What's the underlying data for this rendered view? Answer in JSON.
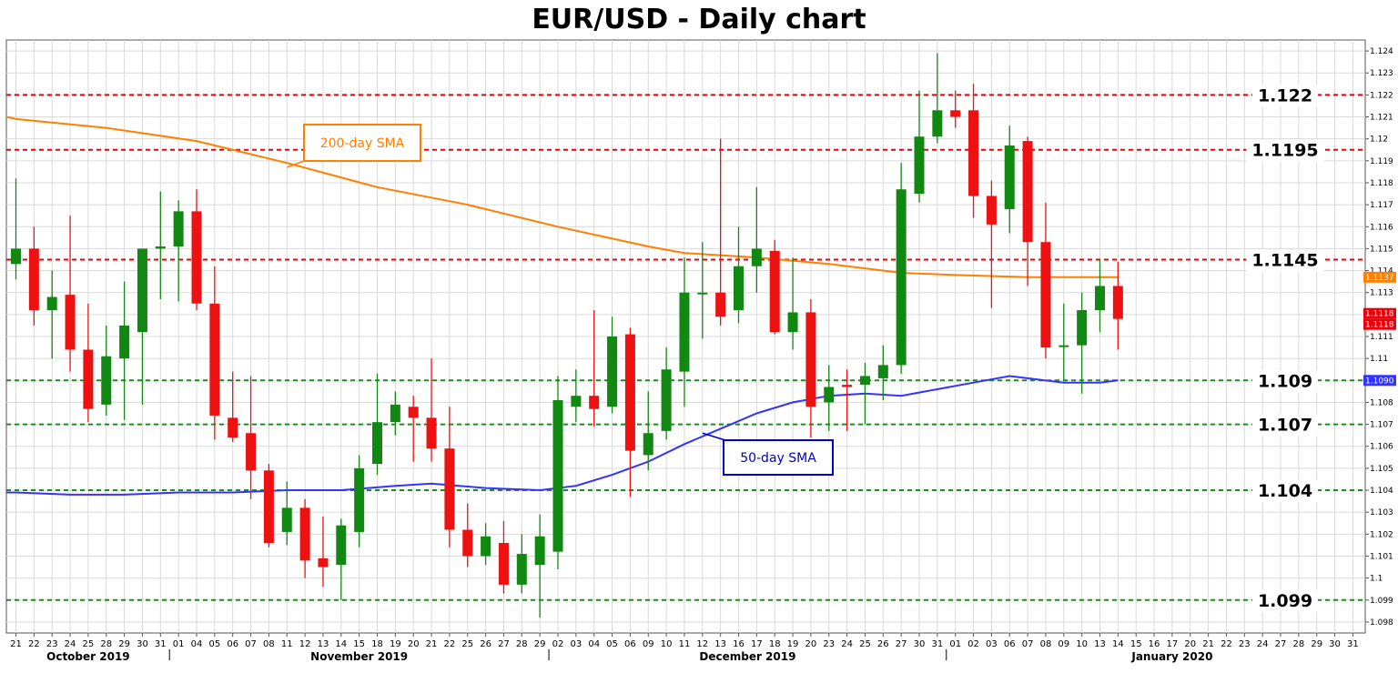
{
  "chart_data": {
    "type": "candlestick",
    "title": "EUR/USD - Daily chart",
    "ylim": [
      1.0975,
      1.1245
    ],
    "y_ticks": [
      "1.098",
      "1.099",
      "1.1",
      "1.101",
      "1.102",
      "1.103",
      "1.104",
      "1.105",
      "1.106",
      "1.107",
      "1.108",
      "1.109",
      "1.11",
      "1.111",
      "1.112",
      "1.113",
      "1.114",
      "1.115",
      "1.116",
      "1.117",
      "1.118",
      "1.119",
      "1.12",
      "1.121",
      "1.122",
      "1.123",
      "1.124"
    ],
    "x_tick_labels": [
      "21",
      "22",
      "23",
      "24",
      "25",
      "28",
      "29",
      "30",
      "31",
      "01",
      "04",
      "05",
      "06",
      "07",
      "08",
      "11",
      "12",
      "13",
      "14",
      "15",
      "18",
      "19",
      "20",
      "21",
      "22",
      "25",
      "26",
      "27",
      "28",
      "29",
      "02",
      "03",
      "04",
      "05",
      "06",
      "09",
      "10",
      "11",
      "12",
      "13",
      "16",
      "17",
      "18",
      "19",
      "20",
      "23",
      "24",
      "25",
      "26",
      "27",
      "30",
      "31",
      "01",
      "02",
      "03",
      "06",
      "07",
      "08",
      "09",
      "10",
      "13",
      "14",
      "15",
      "16",
      "17",
      "20",
      "21",
      "22",
      "23",
      "24",
      "27",
      "28",
      "29",
      "30",
      "31"
    ],
    "months": [
      {
        "label": "October 2019",
        "at": 0
      },
      {
        "label": "November 2019",
        "at": 9
      },
      {
        "label": "December 2019",
        "at": 30
      },
      {
        "label": "January 2020",
        "at": 52
      }
    ],
    "candles": [
      {
        "o": 1.1143,
        "h": 1.1182,
        "l": 1.1136,
        "c": 1.115
      },
      {
        "o": 1.115,
        "h": 1.116,
        "l": 1.1115,
        "c": 1.1122
      },
      {
        "o": 1.1122,
        "h": 1.114,
        "l": 1.11,
        "c": 1.1128
      },
      {
        "o": 1.1129,
        "h": 1.1165,
        "l": 1.1094,
        "c": 1.1104
      },
      {
        "o": 1.1104,
        "h": 1.1125,
        "l": 1.1071,
        "c": 1.1077
      },
      {
        "o": 1.1079,
        "h": 1.1115,
        "l": 1.1074,
        "c": 1.1101
      },
      {
        "o": 1.11,
        "h": 1.1135,
        "l": 1.1072,
        "c": 1.1115
      },
      {
        "o": 1.1112,
        "h": 1.115,
        "l": 1.1079,
        "c": 1.115
      },
      {
        "o": 1.115,
        "h": 1.1176,
        "l": 1.1127,
        "c": 1.1151
      },
      {
        "o": 1.1151,
        "h": 1.1172,
        "l": 1.1126,
        "c": 1.1167
      },
      {
        "o": 1.1167,
        "h": 1.1177,
        "l": 1.1122,
        "c": 1.1125
      },
      {
        "o": 1.1125,
        "h": 1.1142,
        "l": 1.1063,
        "c": 1.1074
      },
      {
        "o": 1.1073,
        "h": 1.1094,
        "l": 1.1062,
        "c": 1.1064
      },
      {
        "o": 1.1066,
        "h": 1.1092,
        "l": 1.1036,
        "c": 1.1049
      },
      {
        "o": 1.1049,
        "h": 1.1052,
        "l": 1.1014,
        "c": 1.1016
      },
      {
        "o": 1.1021,
        "h": 1.1044,
        "l": 1.1015,
        "c": 1.1032
      },
      {
        "o": 1.1032,
        "h": 1.1036,
        "l": 1.1,
        "c": 1.1008
      },
      {
        "o": 1.1009,
        "h": 1.1028,
        "l": 1.0996,
        "c": 1.1005
      },
      {
        "o": 1.1006,
        "h": 1.1027,
        "l": 1.099,
        "c": 1.1024
      },
      {
        "o": 1.1021,
        "h": 1.1056,
        "l": 1.1014,
        "c": 1.105
      },
      {
        "o": 1.1052,
        "h": 1.1093,
        "l": 1.1047,
        "c": 1.1071
      },
      {
        "o": 1.1071,
        "h": 1.1085,
        "l": 1.1065,
        "c": 1.1079
      },
      {
        "o": 1.1078,
        "h": 1.1083,
        "l": 1.1053,
        "c": 1.1073
      },
      {
        "o": 1.1073,
        "h": 1.11,
        "l": 1.1053,
        "c": 1.1059
      },
      {
        "o": 1.1059,
        "h": 1.1078,
        "l": 1.1014,
        "c": 1.1022
      },
      {
        "o": 1.1022,
        "h": 1.1034,
        "l": 1.1005,
        "c": 1.101
      },
      {
        "o": 1.101,
        "h": 1.1025,
        "l": 1.1006,
        "c": 1.1019
      },
      {
        "o": 1.1016,
        "h": 1.1026,
        "l": 1.0993,
        "c": 1.0997
      },
      {
        "o": 1.0997,
        "h": 1.102,
        "l": 1.0993,
        "c": 1.1011
      },
      {
        "o": 1.1006,
        "h": 1.1029,
        "l": 1.0982,
        "c": 1.1019
      },
      {
        "o": 1.1012,
        "h": 1.1092,
        "l": 1.1004,
        "c": 1.1081
      },
      {
        "o": 1.1078,
        "h": 1.1095,
        "l": 1.1071,
        "c": 1.1083
      },
      {
        "o": 1.1083,
        "h": 1.1122,
        "l": 1.1069,
        "c": 1.1077
      },
      {
        "o": 1.1078,
        "h": 1.1119,
        "l": 1.1075,
        "c": 1.111
      },
      {
        "o": 1.1111,
        "h": 1.1114,
        "l": 1.1037,
        "c": 1.1058
      },
      {
        "o": 1.1056,
        "h": 1.1085,
        "l": 1.1049,
        "c": 1.1066
      },
      {
        "o": 1.1067,
        "h": 1.1105,
        "l": 1.1063,
        "c": 1.1095
      },
      {
        "o": 1.1094,
        "h": 1.1146,
        "l": 1.1078,
        "c": 1.113
      },
      {
        "o": 1.113,
        "h": 1.1153,
        "l": 1.1109,
        "c": 1.113
      },
      {
        "o": 1.113,
        "h": 1.12,
        "l": 1.1115,
        "c": 1.1119
      },
      {
        "o": 1.1122,
        "h": 1.116,
        "l": 1.1116,
        "c": 1.1142
      },
      {
        "o": 1.1142,
        "h": 1.1178,
        "l": 1.113,
        "c": 1.115
      },
      {
        "o": 1.1149,
        "h": 1.1154,
        "l": 1.1111,
        "c": 1.1112
      },
      {
        "o": 1.1112,
        "h": 1.1146,
        "l": 1.1104,
        "c": 1.1121
      },
      {
        "o": 1.1121,
        "h": 1.1127,
        "l": 1.1064,
        "c": 1.1078
      },
      {
        "o": 1.108,
        "h": 1.1097,
        "l": 1.1067,
        "c": 1.1087
      },
      {
        "o": 1.1088,
        "h": 1.1095,
        "l": 1.1067,
        "c": 1.1087
      },
      {
        "o": 1.1088,
        "h": 1.1098,
        "l": 1.107,
        "c": 1.1092
      },
      {
        "o": 1.1091,
        "h": 1.1106,
        "l": 1.1081,
        "c": 1.1097
      },
      {
        "o": 1.1097,
        "h": 1.1189,
        "l": 1.1093,
        "c": 1.1177
      },
      {
        "o": 1.1175,
        "h": 1.1222,
        "l": 1.1171,
        "c": 1.1201
      },
      {
        "o": 1.1201,
        "h": 1.1239,
        "l": 1.1198,
        "c": 1.1213
      },
      {
        "o": 1.1213,
        "h": 1.1222,
        "l": 1.1205,
        "c": 1.121
      },
      {
        "o": 1.1213,
        "h": 1.1225,
        "l": 1.1164,
        "c": 1.1174
      },
      {
        "o": 1.1174,
        "h": 1.1181,
        "l": 1.1123,
        "c": 1.1161
      },
      {
        "o": 1.1168,
        "h": 1.1206,
        "l": 1.1157,
        "c": 1.1197
      },
      {
        "o": 1.1199,
        "h": 1.1201,
        "l": 1.1133,
        "c": 1.1153
      },
      {
        "o": 1.1153,
        "h": 1.1171,
        "l": 1.11,
        "c": 1.1105
      },
      {
        "o": 1.1106,
        "h": 1.1125,
        "l": 1.109,
        "c": 1.1106
      },
      {
        "o": 1.1106,
        "h": 1.113,
        "l": 1.1084,
        "c": 1.1122
      },
      {
        "o": 1.1122,
        "h": 1.1145,
        "l": 1.1112,
        "c": 1.1133
      },
      {
        "o": 1.1133,
        "h": 1.1144,
        "l": 1.1104,
        "c": 1.1118
      }
    ],
    "sma200": {
      "name": "200-day SMA",
      "color": "#FF7F00",
      "points": [
        [
          0,
          1.1209
        ],
        [
          5,
          1.1205
        ],
        [
          10,
          1.1199
        ],
        [
          15,
          1.1189
        ],
        [
          20,
          1.1178
        ],
        [
          25,
          1.117
        ],
        [
          30,
          1.116
        ],
        [
          35,
          1.1151
        ],
        [
          37,
          1.1148
        ],
        [
          41,
          1.1146
        ],
        [
          45,
          1.1143
        ],
        [
          49,
          1.1139
        ],
        [
          52,
          1.1138
        ],
        [
          56,
          1.1137
        ],
        [
          61,
          1.1137
        ]
      ]
    },
    "sma50": {
      "name": "50-day SMA",
      "color": "#3333FF",
      "points": [
        [
          0,
          1.1039
        ],
        [
          3,
          1.1038
        ],
        [
          6,
          1.1038
        ],
        [
          9,
          1.1039
        ],
        [
          12,
          1.1039
        ],
        [
          15,
          1.104
        ],
        [
          18,
          1.104
        ],
        [
          21,
          1.1042
        ],
        [
          23,
          1.1043
        ],
        [
          26,
          1.1041
        ],
        [
          29,
          1.104
        ],
        [
          31,
          1.1042
        ],
        [
          33,
          1.1047
        ],
        [
          35,
          1.1053
        ],
        [
          37,
          1.1061
        ],
        [
          39,
          1.1068
        ],
        [
          41,
          1.1075
        ],
        [
          43,
          1.108
        ],
        [
          45,
          1.1083
        ],
        [
          47,
          1.1084
        ],
        [
          49,
          1.1083
        ],
        [
          51,
          1.1086
        ],
        [
          53,
          1.1089
        ],
        [
          55,
          1.1092
        ],
        [
          56,
          1.1091
        ],
        [
          58,
          1.1089
        ],
        [
          60,
          1.1089
        ],
        [
          61,
          1.109
        ]
      ]
    },
    "levels": [
      {
        "value": 1.122,
        "label": "1.122",
        "color": "#E8000B"
      },
      {
        "value": 1.1195,
        "label": "1.1195",
        "color": "#E8000B"
      },
      {
        "value": 1.1145,
        "label": "1.1145",
        "color": "#E8000B"
      },
      {
        "value": 1.109,
        "label": "1.109",
        "color": "#1E8C1E"
      },
      {
        "value": 1.107,
        "label": "1.107",
        "color": "#1E8C1E"
      },
      {
        "value": 1.104,
        "label": "1.104",
        "color": "#1E8C1E"
      },
      {
        "value": 1.099,
        "label": "1.099",
        "color": "#1E8C1E"
      }
    ],
    "price_tags": [
      {
        "value": 1.1137,
        "label": "1.1137",
        "color": "#FF7F00"
      },
      {
        "value": 1.1118,
        "label": "1.1118",
        "color": "#E8000B"
      },
      {
        "value": 1.1118,
        "label": "1.1118",
        "color": "#E8000B"
      },
      {
        "value": 1.109,
        "label": "1.1090",
        "color": "#3333FF"
      }
    ],
    "annotations": [
      {
        "text": "200-day SMA",
        "color": "#FF7F00",
        "target": [
          15,
          1.1187
        ]
      },
      {
        "text": "50-day SMA",
        "color": "#0000CC",
        "target": [
          38,
          1.1066
        ]
      }
    ],
    "colors": {
      "up": "#118811",
      "down": "#EE1111",
      "grid": "#D9D9D9"
    }
  }
}
